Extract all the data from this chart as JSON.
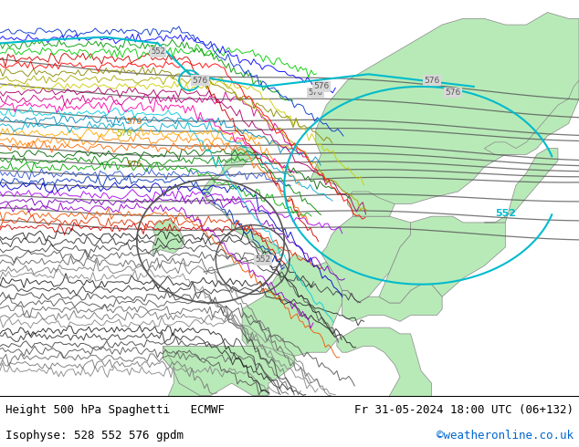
{
  "title_left": "Height 500 hPa Spaghetti   ECMWF",
  "title_right": "Fr 31-05-2024 18:00 UTC (06+132)",
  "subtitle_left": "Isophyse: 528 552 576 gpdm",
  "subtitle_right": "©weatheronline.co.uk",
  "subtitle_right_color": "#0066cc",
  "sea_color": "#d8d8d8",
  "land_color": "#b8eab8",
  "land_edge_color": "#888888",
  "contour_dark": "#555555",
  "contour_cyan": "#00bbcc",
  "figsize": [
    6.34,
    4.9
  ],
  "dpi": 100,
  "spaghetti_colors": [
    "#888888",
    "#777777",
    "#666666",
    "#555555",
    "#444444",
    "#333333",
    "#222222",
    "#888888",
    "#777777",
    "#666666",
    "#555555",
    "#444444",
    "#333333",
    "#222222",
    "#888888",
    "#777777",
    "#666666",
    "#555555",
    "#444444",
    "#333333",
    "#222222",
    "#cc0000",
    "#dd3300",
    "#ee5500",
    "#9900cc",
    "#7700bb",
    "#aa00ee",
    "#0000cc",
    "#0033bb",
    "#3355cc",
    "#00aa00",
    "#008800",
    "#006600",
    "#ff6600",
    "#ff8800",
    "#ffaa00",
    "#00aacc",
    "#0088bb",
    "#00ccdd",
    "#ff00aa",
    "#cc0088",
    "#aa0066",
    "#cccc00",
    "#aaaa00",
    "#888800",
    "#ff0000",
    "#cc0000",
    "#00cc00",
    "#009900",
    "#0000ff",
    "#0033cc",
    "#ff00ff",
    "#cc00cc",
    "#ff6600",
    "#ff9900",
    "#ffff00",
    "#cccc00",
    "#cc00ff",
    "#9900cc"
  ],
  "n_spaghetti": 51
}
